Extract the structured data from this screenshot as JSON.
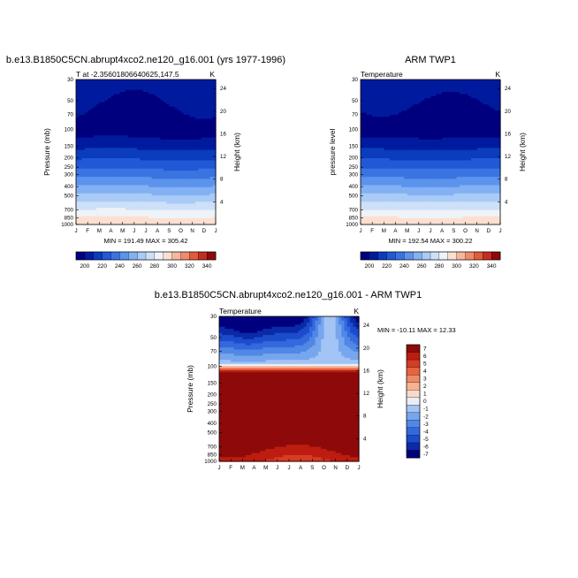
{
  "chart_data": [
    {
      "type": "heatmap",
      "title": "b.e13.B1850C5CN.abrupt4xco2.ne120_g16.001 (yrs 1977-1996)",
      "subtitle_left": "T at -2.35601806640625,147.5",
      "subtitle_right": "K",
      "xlabel": "",
      "ylabel": "Pressure (mb)",
      "ylabel_right": "Height (km)",
      "x_ticks": [
        "J",
        "F",
        "M",
        "A",
        "M",
        "J",
        "J",
        "A",
        "S",
        "O",
        "N",
        "D",
        "J"
      ],
      "y_ticks": [
        "30",
        "50",
        "70",
        "100",
        "150",
        "200",
        "250",
        "300",
        "400",
        "500",
        "700",
        "850",
        "1000"
      ],
      "height_ticks": [
        "24",
        "20",
        "16",
        "12",
        "8",
        "4"
      ],
      "min_max": "MIN = 191.49 MAX = 305.42",
      "colorbar_labels": [
        "200",
        "220",
        "240",
        "260",
        "280",
        "300",
        "320",
        "340"
      ],
      "levels": [
        190,
        200,
        210,
        220,
        230,
        240,
        250,
        260,
        270,
        280,
        290,
        300,
        310,
        320,
        330,
        340
      ],
      "colors": [
        "#00007f",
        "#001b9e",
        "#0a3cbd",
        "#2159d6",
        "#3b74e0",
        "#5c93ec",
        "#83b1f3",
        "#a9cbf7",
        "#cde0f8",
        "#eef3f8",
        "#fbe0d2",
        "#f8b79d",
        "#f28a6a",
        "#e25b3d",
        "#c42e1e",
        "#8e0a0a"
      ]
    },
    {
      "type": "heatmap",
      "title": "ARM TWP1",
      "subtitle_left": "Temperature",
      "subtitle_right": "K",
      "xlabel": "",
      "ylabel": "pressure level",
      "ylabel_right": "Height (km)",
      "x_ticks": [
        "J",
        "F",
        "M",
        "A",
        "M",
        "J",
        "J",
        "A",
        "S",
        "O",
        "N",
        "D",
        "J"
      ],
      "y_ticks": [
        "30",
        "50",
        "70",
        "100",
        "150",
        "200",
        "250",
        "300",
        "400",
        "500",
        "700",
        "850",
        "1000"
      ],
      "height_ticks": [
        "24",
        "20",
        "16",
        "12",
        "8",
        "4"
      ],
      "min_max": "MIN = 192.54 MAX = 300.22",
      "colorbar_labels": [
        "200",
        "220",
        "240",
        "260",
        "280",
        "300",
        "320",
        "340"
      ]
    },
    {
      "type": "heatmap",
      "title": "b.e13.B1850C5CN.abrupt4xco2.ne120_g16.001 - ARM TWP1",
      "subtitle_left": "Temperature",
      "subtitle_right": "K",
      "xlabel": "",
      "ylabel": "Pressure (mb)",
      "ylabel_right": "Height (km)",
      "x_ticks": [
        "J",
        "F",
        "M",
        "A",
        "M",
        "J",
        "J",
        "A",
        "S",
        "O",
        "N",
        "D",
        "J"
      ],
      "y_ticks": [
        "30",
        "50",
        "70",
        "100",
        "150",
        "200",
        "250",
        "300",
        "400",
        "500",
        "700",
        "850",
        "1000"
      ],
      "height_ticks": [
        "24",
        "20",
        "16",
        "12",
        "8",
        "4"
      ],
      "min_max": "MIN = -10.11 MAX =  12.33",
      "colorbar_labels": [
        "7",
        "6",
        "5",
        "4",
        "3",
        "2",
        "1",
        "0",
        "-1",
        "-2",
        "-3",
        "-4",
        "-5",
        "-6",
        "-7"
      ],
      "colors": [
        "#00007f",
        "#0a2aa8",
        "#1b4ccc",
        "#3469dd",
        "#5188e6",
        "#77a6ee",
        "#a3c4f4",
        "#e8eef7",
        "#fbd9c9",
        "#f7b293",
        "#f28a66",
        "#e76342",
        "#d73c25",
        "#bd1d10",
        "#8e0a0a"
      ]
    }
  ]
}
